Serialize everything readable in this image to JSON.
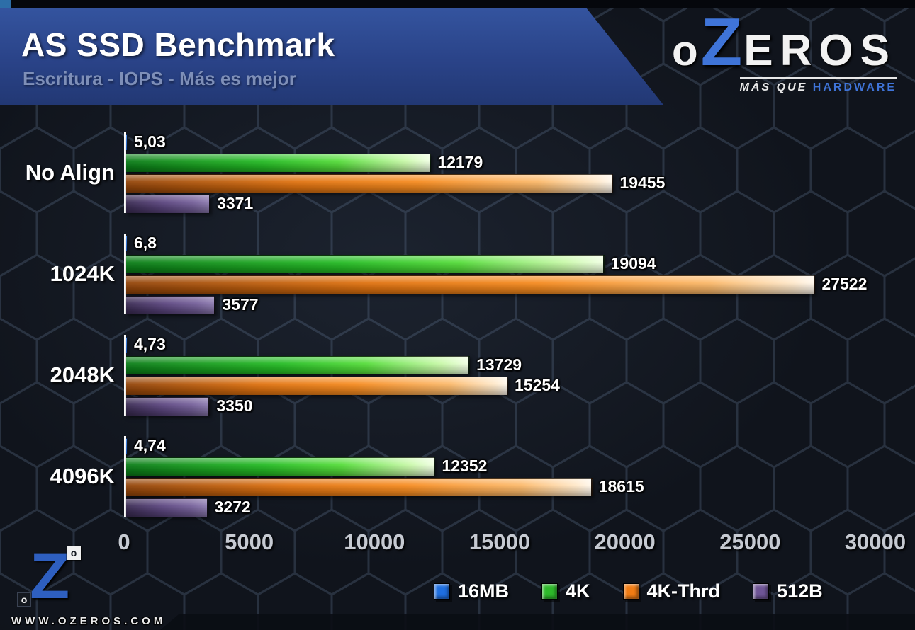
{
  "header": {
    "title": "AS SSD Benchmark",
    "subtitle": "Escritura - IOPS - Más es mejor"
  },
  "logo": {
    "o": "o",
    "z": "Z",
    "eros": "EROS",
    "tagline_plain": "MÁS QUE",
    "tagline_accent": "HARDWARE"
  },
  "footer": {
    "site": "WWW.OZEROS.COM",
    "z_letter": "Z",
    "sq_top": "o",
    "sq_bottom": "o"
  },
  "chart_data": {
    "type": "bar",
    "orientation": "horizontal",
    "title": "AS SSD Benchmark",
    "subtitle": "Escritura - IOPS - Más es mejor",
    "units": "IOPS",
    "grid": false,
    "legend_position": "bottom",
    "categories": [
      "No Align",
      "1024K",
      "2048K",
      "4096K"
    ],
    "series": [
      {
        "name": "16MB",
        "color": "#1f6fe0",
        "values": [
          5.03,
          6.8,
          4.73,
          4.74
        ],
        "labels": [
          "5,03",
          "6,8",
          "4,73",
          "4,74"
        ]
      },
      {
        "name": "4K",
        "color": "#2eb82a",
        "values": [
          12179,
          19094,
          13729,
          12352
        ],
        "labels": [
          "12179",
          "19094",
          "13729",
          "12352"
        ]
      },
      {
        "name": "4K-Thrd",
        "color": "#f07c14",
        "values": [
          19455,
          27522,
          15254,
          18615
        ],
        "labels": [
          "19455",
          "27522",
          "15254",
          "18615"
        ]
      },
      {
        "name": "512B",
        "color": "#6f5596",
        "values": [
          3371,
          3577,
          3350,
          3272
        ],
        "labels": [
          "3371",
          "3577",
          "3350",
          "3272"
        ]
      }
    ],
    "xlim": [
      0,
      30000
    ],
    "xticks": [
      0,
      5000,
      10000,
      15000,
      20000,
      25000,
      30000
    ],
    "xtick_labels": [
      "0",
      "5000",
      "10000",
      "15000",
      "20000",
      "25000",
      "30000"
    ]
  }
}
